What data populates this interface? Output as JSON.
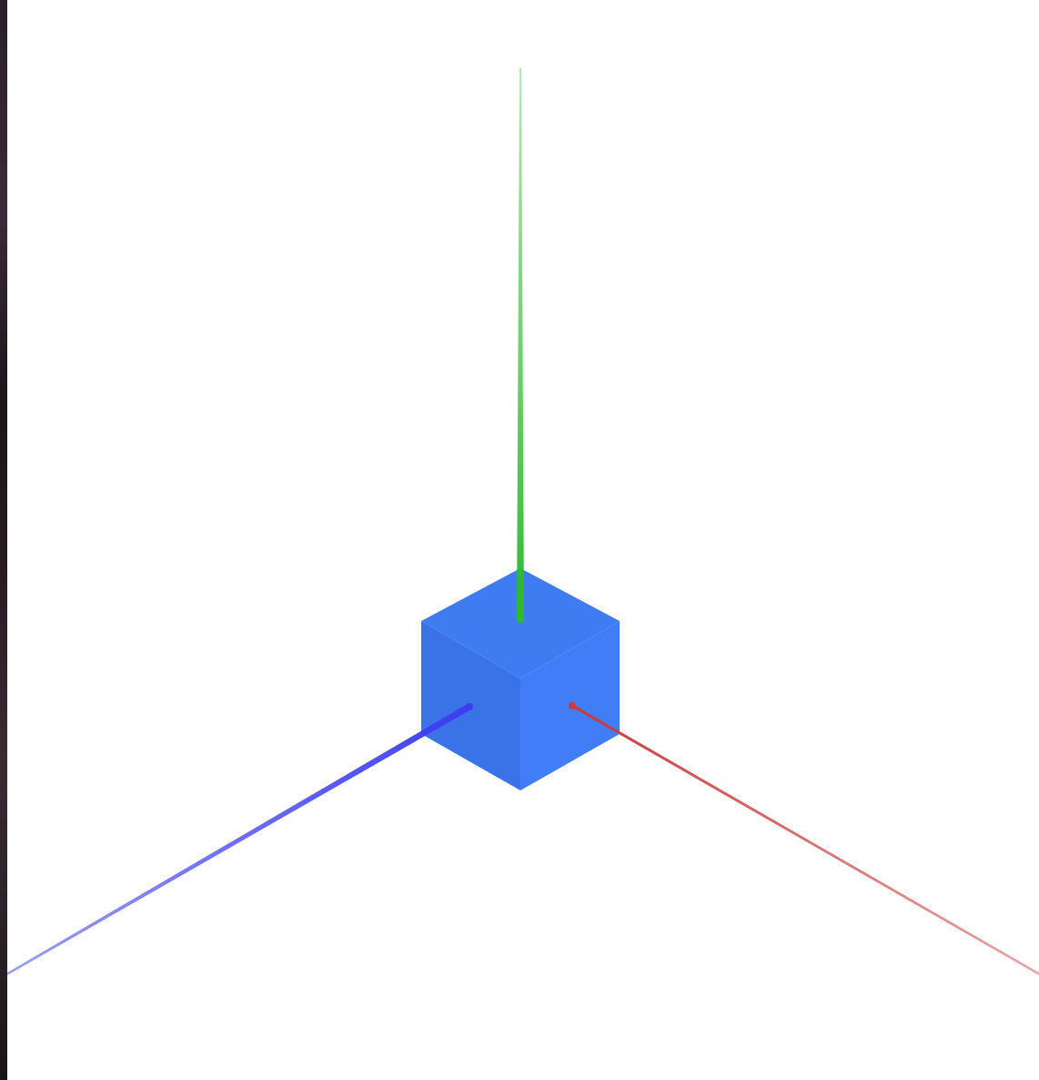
{
  "window": {
    "title": ""
  },
  "scene": {
    "background_color": "#ffffff",
    "cube": {
      "name": "cube",
      "top_color": "#3f7cf2",
      "left_color": "#3a73e8",
      "right_color": "#407df6"
    },
    "axes": {
      "x": {
        "name": "x-axis",
        "color": "#c93b3b"
      },
      "y": {
        "name": "y-axis",
        "color": "#2dbb2d"
      },
      "z": {
        "name": "z-axis",
        "color": "#3d3df0"
      }
    },
    "left_panel_edge_icon": "window-edge-icon"
  }
}
